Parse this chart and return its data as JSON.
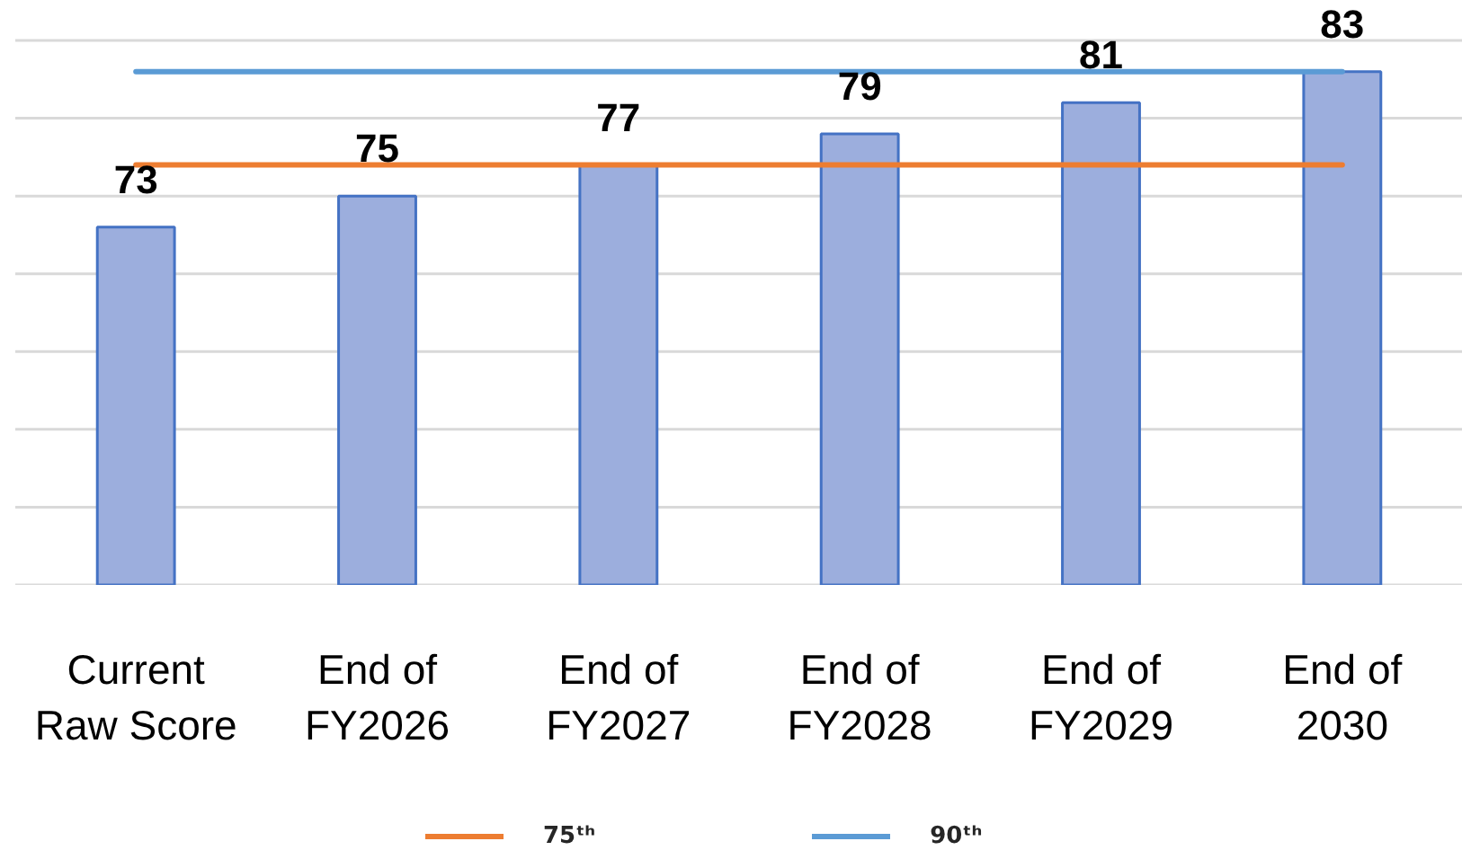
{
  "chart_data": {
    "type": "bar",
    "categories": [
      "Current Raw Score",
      "End of FY2026",
      "End of FY2027",
      "End of FY2028",
      "End of FY2029",
      "End of 2030"
    ],
    "series": [
      {
        "color": "#9caedd",
        "values": [
          73,
          75,
          77,
          79,
          81,
          83
        ],
        "value_labels": [
          "73",
          "75",
          "77",
          "79",
          "81",
          "83"
        ]
      },
      {
        "type": "line",
        "name": "75ᵗʰ",
        "color": "#ed7d31",
        "values": [
          77,
          77,
          77,
          77,
          77,
          77
        ]
      },
      {
        "type": "line",
        "name": "90ᵗʰ",
        "color": "#5b9bd5",
        "values": [
          83,
          83,
          83,
          83,
          83,
          83
        ]
      }
    ],
    "ylim": [
      50,
      85
    ],
    "yticks": [
      {
        "value": 50,
        "label": null
      },
      {
        "value": 55,
        "label": null
      },
      {
        "value": 60,
        "label": null
      },
      {
        "value": 65,
        "label": null
      },
      {
        "value": 70,
        "label": null
      },
      {
        "value": 75,
        "label": null
      },
      {
        "value": 80,
        "label": null
      },
      {
        "value": 85,
        "label": null
      }
    ],
    "grid": "y",
    "tick_labels": "x",
    "legend": "bottom",
    "line_style": "solid"
  }
}
